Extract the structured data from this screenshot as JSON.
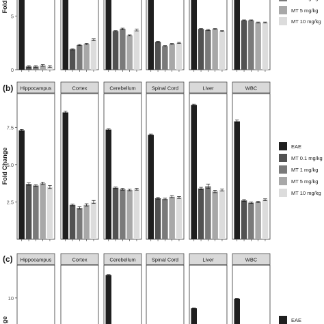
{
  "colors": {
    "EAE": "#1f1f1f",
    "MT 0.1 mg/kg": "#525252",
    "MT 1 mg/kg": "#7a7a7a",
    "MT 5 mg/kg": "#a8a8a8",
    "MT 10 mg/kg": "#dcdcdc",
    "strip_fill": "#d9d9d9",
    "panel_border": "#333333",
    "text": "#1a1a1a"
  },
  "chart_data": [
    {
      "type": "bar",
      "panel_label": "",
      "ylabel": "Fold",
      "ylim": [
        0,
        6.5
      ],
      "yticks": [
        {
          "value": 5,
          "label": "5"
        },
        {
          "value": 0,
          "label": "0"
        }
      ],
      "legend_position": "right",
      "legend_visible": [
        "MT 5 mg/kg",
        "MT 10 mg/kg"
      ],
      "grid": false,
      "facets": [
        "Hippocampus",
        "Cortex",
        "Cerebellum",
        "Spinal Cord",
        "Liver",
        "WBC"
      ],
      "strip_visible": false,
      "series_names": [
        "EAE",
        "MT 0.1 mg/kg",
        "MT 1 mg/kg",
        "MT 5 mg/kg",
        "MT 10 mg/kg"
      ],
      "values": [
        [
          6.5,
          0.3,
          0.3,
          0.4,
          0.3
        ],
        [
          6.5,
          1.9,
          2.3,
          2.4,
          2.8
        ],
        [
          6.5,
          3.6,
          3.8,
          3.2,
          3.7
        ],
        [
          6.5,
          2.6,
          2.2,
          2.4,
          2.5
        ],
        [
          6.5,
          3.8,
          3.7,
          3.8,
          3.6
        ],
        [
          6.5,
          4.6,
          4.6,
          4.4,
          4.4
        ]
      ],
      "errors": [
        [
          0,
          0.08,
          0.08,
          0.08,
          0.08
        ],
        [
          0,
          0.05,
          0.05,
          0.05,
          0.08
        ],
        [
          0,
          0.05,
          0.08,
          0.05,
          0.08
        ],
        [
          0,
          0.05,
          0.05,
          0.05,
          0.05
        ],
        [
          0,
          0.05,
          0.05,
          0.05,
          0.05
        ],
        [
          0,
          0.05,
          0.05,
          0.05,
          0.05
        ]
      ],
      "legend_partial_label": "MT 1 mg/kg"
    },
    {
      "type": "bar",
      "panel_label": "(b)",
      "ylabel": "Fold Change",
      "ylim": [
        0,
        9.3
      ],
      "yticks": [
        {
          "value": 2.5,
          "label": "2.5"
        },
        {
          "value": 5.0,
          "label": "5.0"
        },
        {
          "value": 7.5,
          "label": "7.5"
        }
      ],
      "legend_position": "right",
      "grid": false,
      "facets": [
        "Hippocampus",
        "Cortex",
        "Cerebellum",
        "Spinal Cord",
        "Liver",
        "WBC"
      ],
      "strip_visible": true,
      "series_names": [
        "EAE",
        "MT 0.1 mg/kg",
        "MT 1 mg/kg",
        "MT 5 mg/kg",
        "MT 10 mg/kg"
      ],
      "legend": [
        "EAE",
        "MT 0.1 mg/kg",
        "MT 1 mg/kg",
        "MT 5 mg/kg",
        "MT 10 mg/kg"
      ],
      "values": [
        [
          7.3,
          3.7,
          3.6,
          3.75,
          3.5
        ],
        [
          8.5,
          2.3,
          2.1,
          2.3,
          2.5
        ],
        [
          7.35,
          3.45,
          3.35,
          3.3,
          3.35
        ],
        [
          7.0,
          2.75,
          2.7,
          2.85,
          2.8
        ],
        [
          9.0,
          3.4,
          3.55,
          3.2,
          3.3
        ],
        [
          7.9,
          2.6,
          2.45,
          2.5,
          2.65
        ]
      ],
      "errors": [
        [
          0.06,
          0.08,
          0.06,
          0.08,
          0.1
        ],
        [
          0.08,
          0.06,
          0.08,
          0.08,
          0.1
        ],
        [
          0.05,
          0.05,
          0.06,
          0.05,
          0.06
        ],
        [
          0.05,
          0.06,
          0.05,
          0.08,
          0.06
        ],
        [
          0.06,
          0.08,
          0.15,
          0.08,
          0.06
        ],
        [
          0.1,
          0.06,
          0.05,
          0.05,
          0.06
        ]
      ]
    },
    {
      "type": "bar",
      "panel_label": "(c)",
      "ylabel": "ge",
      "ylim": [
        0,
        17
      ],
      "yticks": [
        {
          "value": 10,
          "label": "10"
        }
      ],
      "legend_position": "right",
      "legend_visible": [
        "EAE"
      ],
      "grid": false,
      "facets": [
        "Hippocampus",
        "Cortex",
        "Cerebellum",
        "Spinal Cord",
        "Liver",
        "WBC"
      ],
      "strip_visible": true,
      "series_names": [
        "EAE"
      ],
      "values": [
        [],
        [],
        [
          16.2
        ],
        [],
        [
          7.2
        ],
        [
          9.8
        ]
      ],
      "errors": [
        [],
        [],
        [
          0.1
        ],
        [],
        [
          0.1
        ],
        [
          0.1
        ]
      ]
    }
  ]
}
